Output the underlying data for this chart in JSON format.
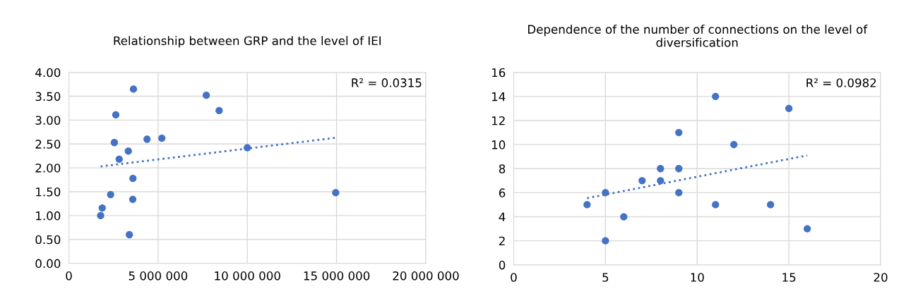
{
  "chart_data": [
    {
      "type": "scatter",
      "title": "Relationship between GRP and the level of IEI",
      "x": [
        3620000,
        2630000,
        2550000,
        3330000,
        2820000,
        4380000,
        5210000,
        7700000,
        8420000,
        3590000,
        2340000,
        3580000,
        1870000,
        1780000,
        3390000,
        10000000,
        14950000
      ],
      "series": [
        {
          "color": "#4472c4",
          "values": [
            3.65,
            3.11,
            2.53,
            2.35,
            2.18,
            2.6,
            2.62,
            3.52,
            3.2,
            1.78,
            1.44,
            1.34,
            1.16,
            1.0,
            0.6,
            2.42,
            1.48
          ]
        },
        {
          "type": "line",
          "color": "#4472c4",
          "line_style": "dotted",
          "marker": "none",
          "x": [
            1780000,
            14950000
          ],
          "values": [
            2.03,
            2.63
          ]
        }
      ],
      "xlim": [
        0,
        20000000
      ],
      "xticks": [
        0,
        {
          "value": 5000000,
          "label": "5 000 000"
        },
        {
          "value": 10000000,
          "label": "10 000 000"
        },
        {
          "value": 15000000,
          "label": "15 000 000"
        },
        {
          "value": 20000000,
          "label": "20 000 000"
        }
      ],
      "ylim": [
        0,
        4
      ],
      "yticks": [
        {
          "value": 0,
          "label": "0.00"
        },
        {
          "value": 0.5,
          "label": "0.50"
        },
        {
          "value": 1,
          "label": "1.00"
        },
        {
          "value": 1.5,
          "label": "1.50"
        },
        {
          "value": 2,
          "label": "2.00"
        },
        {
          "value": 2.5,
          "label": "2.50"
        },
        {
          "value": 3,
          "label": "3.00"
        },
        {
          "value": 3.5,
          "label": "3.50"
        },
        {
          "value": 4,
          "label": "4.00"
        }
      ],
      "annotations": [
        "R² = 0.0315"
      ],
      "grid": true,
      "marker": "circle"
    },
    {
      "type": "scatter",
      "title": "Dependence of the number of connections on the level of diversification",
      "x": [
        4,
        5,
        5,
        6,
        7,
        8,
        8,
        9,
        9,
        9,
        11,
        15,
        12,
        11,
        14,
        16
      ],
      "series": [
        {
          "color": "#4472c4",
          "values": [
            5,
            6,
            2,
            4,
            7,
            8,
            7,
            11,
            8,
            6,
            14,
            13,
            10,
            5,
            5,
            3
          ]
        },
        {
          "type": "line",
          "color": "#4472c4",
          "line_style": "dotted",
          "marker": "none",
          "x": [
            4,
            16
          ],
          "values": [
            5.55,
            9.1
          ]
        }
      ],
      "xlim": [
        0,
        20
      ],
      "xticks": [
        0,
        5,
        10,
        15,
        20
      ],
      "ylim": [
        0,
        16
      ],
      "yticks": [
        0,
        2,
        4,
        6,
        8,
        10,
        12,
        14,
        16
      ],
      "annotations": [
        "R² = 0.0982"
      ],
      "grid": true,
      "marker": "circle"
    }
  ]
}
